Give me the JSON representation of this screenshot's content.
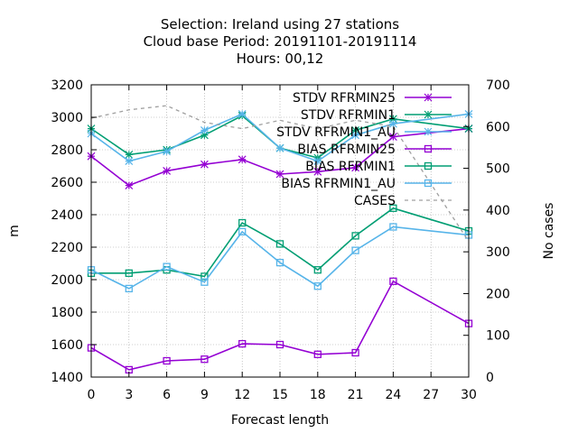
{
  "chart_data": {
    "type": "line",
    "title_lines": [
      "Selection: Ireland using    27 stations",
      "Cloud base   Period: 20191101-20191114",
      "Hours:  00,12"
    ],
    "xlabel": "Forecast length",
    "ylabel": "m",
    "y2label": "No cases",
    "xlim": [
      0,
      30
    ],
    "ylim": [
      1400,
      3200
    ],
    "y2lim": [
      0,
      700
    ],
    "xticks": [
      0,
      3,
      6,
      9,
      12,
      15,
      18,
      21,
      24,
      27,
      30
    ],
    "yticks": [
      1400,
      1600,
      1800,
      2000,
      2200,
      2400,
      2600,
      2800,
      3000,
      3200
    ],
    "y2ticks": [
      0,
      100,
      200,
      300,
      400,
      500,
      600,
      700
    ],
    "grid": true,
    "legend_position": "top-right",
    "x": [
      0,
      3,
      6,
      9,
      12,
      15,
      18,
      21,
      24,
      30
    ],
    "series": [
      {
        "name": "STDV RFRMIN25",
        "color": "#9400d3",
        "marker": "star",
        "axis": "y1",
        "dash": false,
        "values": [
          2760,
          2580,
          2670,
          2710,
          2740,
          2650,
          2665,
          2690,
          2880,
          2930
        ]
      },
      {
        "name": "STDV RFRMIN1",
        "color": "#009e73",
        "marker": "star",
        "axis": "y1",
        "dash": false,
        "values": [
          2930,
          2770,
          2800,
          2890,
          3010,
          2810,
          2750,
          2920,
          2990,
          2930
        ]
      },
      {
        "name": "STDV RFRMIN1_AU",
        "color": "#56b4e9",
        "marker": "star",
        "axis": "y1",
        "dash": false,
        "values": [
          2900,
          2730,
          2790,
          2920,
          3020,
          2810,
          2730,
          2890,
          2960,
          3020
        ]
      },
      {
        "name": "BIAS RFRMIN25",
        "color": "#9400d3",
        "marker": "square",
        "axis": "y1",
        "dash": false,
        "values": [
          1580,
          1445,
          1500,
          1510,
          1605,
          1600,
          1540,
          1550,
          1990,
          1730
        ]
      },
      {
        "name": "BIAS RFRMIN1",
        "color": "#009e73",
        "marker": "square",
        "axis": "y1",
        "dash": false,
        "values": [
          2040,
          2040,
          2060,
          2020,
          2350,
          2220,
          2060,
          2270,
          2440,
          2300
        ]
      },
      {
        "name": "BIAS RFRMIN1_AU",
        "color": "#56b4e9",
        "marker": "square",
        "axis": "y1",
        "dash": false,
        "values": [
          2060,
          1945,
          2080,
          1985,
          2295,
          2105,
          1960,
          2180,
          2325,
          2275
        ]
      },
      {
        "name": "CASES",
        "color": "#a0a0a0",
        "marker": "none",
        "axis": "y2",
        "dash": true,
        "values": [
          620,
          640,
          650,
          610,
          595,
          615,
          595,
          615,
          600,
          325
        ]
      }
    ]
  }
}
